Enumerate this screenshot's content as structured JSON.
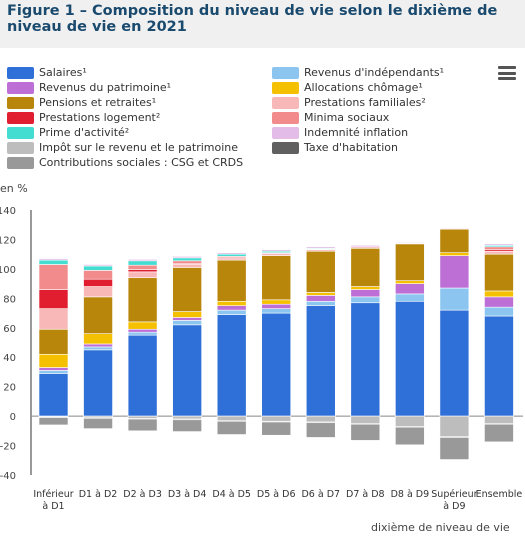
{
  "header": {
    "title": "Figure 1 – Composition du niveau de vie selon le dixième de niveau de vie en 2021"
  },
  "menu": {
    "icon": "hamburger-menu-icon"
  },
  "chart_data": {
    "type": "bar",
    "stacked": true,
    "unit_label": "en %",
    "xlabel": "dixième de niveau de vie",
    "ylim": [
      -40,
      140
    ],
    "yticks": [
      -40,
      -20,
      0,
      20,
      40,
      60,
      80,
      100,
      120,
      140
    ],
    "grid": false,
    "legend_position": "top",
    "categories": [
      [
        "Inférieur",
        "à D1"
      ],
      [
        "D1 à D2"
      ],
      [
        "D2 à D3"
      ],
      [
        "D3 à D4"
      ],
      [
        "D4 à D5"
      ],
      [
        "D5 à D6"
      ],
      [
        "D6 à D7"
      ],
      [
        "D7 à D8"
      ],
      [
        "D8 à D9"
      ],
      [
        "Supérieur",
        "à D9"
      ],
      [
        "Ensemble"
      ]
    ],
    "series": [
      {
        "name": "Salaires¹",
        "color": "#2e6fd8",
        "values": [
          29,
          45,
          55,
          62,
          69,
          70,
          75,
          77,
          78,
          72,
          68
        ]
      },
      {
        "name": "Revenus d'indépendants¹",
        "color": "#8cc6f0",
        "values": [
          2,
          2,
          2,
          3,
          3,
          3,
          3,
          4,
          5,
          15,
          6
        ]
      },
      {
        "name": "Revenus du patrimoine¹",
        "color": "#bd6fd6",
        "values": [
          2,
          2,
          2,
          2,
          3,
          3,
          4,
          5,
          7,
          22,
          7
        ]
      },
      {
        "name": "Allocations chômage¹",
        "color": "#f5c000",
        "values": [
          9,
          7,
          5,
          4,
          3,
          3,
          2,
          2,
          2,
          2,
          4
        ]
      },
      {
        "name": "Pensions et retraites¹",
        "color": "#b8860b",
        "values": [
          17,
          25,
          30,
          30,
          28,
          30,
          28,
          26,
          25,
          16,
          25
        ]
      },
      {
        "name": "Prestations familiales²",
        "color": "#f9b8b8",
        "values": [
          14,
          7,
          4,
          2,
          1.5,
          1.5,
          1,
          1,
          0.5,
          0.5,
          2
        ]
      },
      {
        "name": "Prestations logement²",
        "color": "#e01e2f",
        "values": [
          13,
          5,
          1.5,
          0.5,
          0,
          0,
          0,
          0,
          0,
          0,
          1
        ]
      },
      {
        "name": "Minima sociaux",
        "color": "#f28b8b",
        "values": [
          17,
          6,
          3,
          2,
          1,
          0.5,
          0.5,
          0,
          0,
          0,
          2
        ]
      },
      {
        "name": "Prime d'activité²",
        "color": "#44ddd2",
        "values": [
          3,
          3,
          3,
          2,
          1.5,
          1,
          0.5,
          0,
          0,
          0,
          1
        ]
      },
      {
        "name": "Indemnité inflation",
        "color": "#e3bde8",
        "values": [
          1,
          1,
          1,
          1,
          1,
          1,
          1,
          1,
          0.5,
          0.5,
          1
        ]
      },
      {
        "name": "Impôt sur le revenu et le patrimoine",
        "color": "#bdbdbd",
        "values": [
          -0.5,
          -1,
          -1.5,
          -2,
          -3,
          -3.5,
          -4,
          -5,
          -7,
          -14,
          -5
        ]
      },
      {
        "name": "Taxe d'habitation",
        "color": "#606060",
        "values": [
          -0.5,
          -0.5,
          -0.5,
          -0.5,
          -0.5,
          -0.5,
          -0.5,
          -0.5,
          -0.5,
          -0.5,
          -0.5
        ]
      },
      {
        "name": "Contributions sociales : CSG et CRDS",
        "color": "#999999",
        "values": [
          -5,
          -7,
          -8,
          -8,
          -9,
          -9,
          -10,
          -11,
          -12,
          -15,
          -12
        ]
      }
    ]
  }
}
